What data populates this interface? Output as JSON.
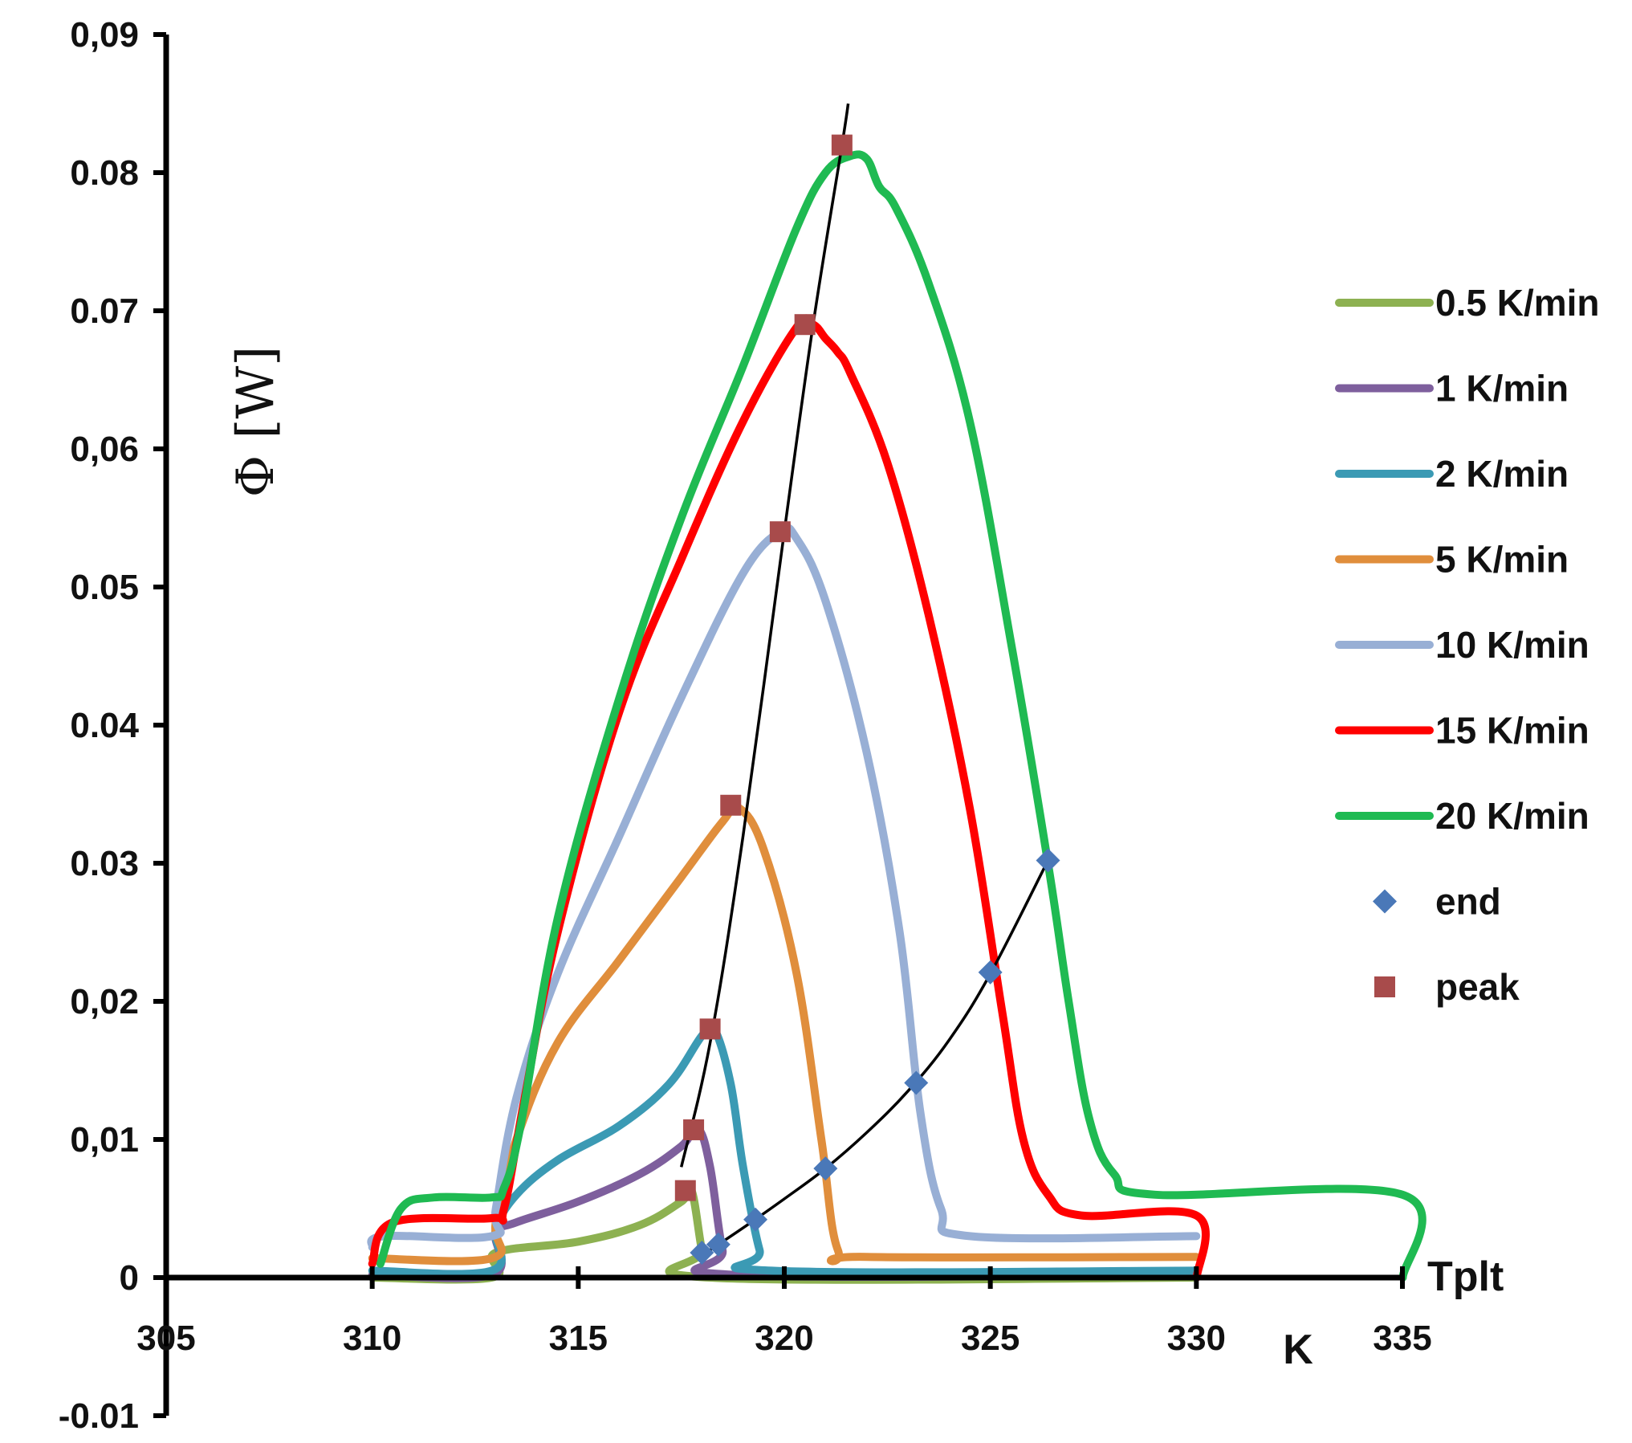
{
  "chart_data": {
    "type": "line",
    "title": "",
    "xlabel": "K",
    "x_axis_end_label": "Tplt",
    "ylabel": "Φ [W]",
    "xlim": [
      305,
      335
    ],
    "ylim": [
      -0.01,
      0.09
    ],
    "x_ticks": [
      {
        "value": 305,
        "label": "305"
      },
      {
        "value": 310,
        "label": "310"
      },
      {
        "value": 315,
        "label": "315"
      },
      {
        "value": 320,
        "label": "320"
      },
      {
        "value": 325,
        "label": "325"
      },
      {
        "value": 330,
        "label": "330"
      },
      {
        "value": 335,
        "label": "335"
      }
    ],
    "y_ticks": [
      {
        "value": 0.09,
        "label": "0,09"
      },
      {
        "value": 0.08,
        "label": "0.08"
      },
      {
        "value": 0.07,
        "label": "0.07"
      },
      {
        "value": 0.06,
        "label": "0,06"
      },
      {
        "value": 0.05,
        "label": "0.05"
      },
      {
        "value": 0.04,
        "label": "0.04"
      },
      {
        "value": 0.03,
        "label": "0.03"
      },
      {
        "value": 0.02,
        "label": "0,02"
      },
      {
        "value": 0.01,
        "label": "0,01"
      },
      {
        "value": 0,
        "label": "0"
      },
      {
        "value": -0.01,
        "label": "-0.01"
      }
    ],
    "series": [
      {
        "name": "0.5 K/min",
        "color": "#8db151",
        "x": [
          310,
          312.9,
          313.0,
          315,
          316.5,
          317.5,
          317.75,
          318.0,
          318.2,
          330
        ],
        "y": [
          0,
          0,
          0.0018,
          0.0026,
          0.0038,
          0.0055,
          0.0063,
          0.002,
          0.0,
          0.0
        ]
      },
      {
        "name": "1 K/min",
        "color": "#7e5f9d",
        "x": [
          310,
          312.9,
          313.0,
          313.5,
          315,
          316.5,
          317.5,
          317.9,
          318.2,
          318.5,
          318.8,
          330
        ],
        "y": [
          0.0002,
          0.0002,
          0.0032,
          0.004,
          0.0055,
          0.0075,
          0.0095,
          0.0108,
          0.008,
          0.002,
          0.0002,
          0.0002
        ]
      },
      {
        "name": "2 K/min",
        "color": "#3b9ab4",
        "x": [
          310,
          312.9,
          313.0,
          313.5,
          314.5,
          316,
          317.2,
          318.0,
          318.3,
          318.7,
          319.0,
          319.4,
          319.7,
          330
        ],
        "y": [
          0.0005,
          0.0005,
          0.0035,
          0.006,
          0.0085,
          0.011,
          0.014,
          0.0175,
          0.018,
          0.014,
          0.008,
          0.002,
          0.0005,
          0.0005
        ]
      },
      {
        "name": "5 K/min",
        "color": "#e08e3c",
        "x": [
          310,
          312.9,
          313.0,
          313.5,
          314.5,
          316,
          317.5,
          318.5,
          318.9,
          319.5,
          320.3,
          320.9,
          321.3,
          322,
          330
        ],
        "y": [
          0.0014,
          0.0014,
          0.004,
          0.01,
          0.017,
          0.023,
          0.029,
          0.033,
          0.034,
          0.031,
          0.022,
          0.01,
          0.002,
          0.0015,
          0.0015
        ]
      },
      {
        "name": "10 K/min",
        "color": "#98afd5",
        "x": [
          310,
          310.3,
          312.9,
          313.0,
          313.5,
          314.5,
          316,
          317.5,
          319.0,
          319.9,
          320.3,
          321.0,
          322.0,
          322.8,
          323.3,
          323.8,
          324.5,
          330
        ],
        "y": [
          0.0022,
          0.003,
          0.003,
          0.005,
          0.013,
          0.022,
          0.032,
          0.042,
          0.051,
          0.054,
          0.0535,
          0.049,
          0.038,
          0.025,
          0.012,
          0.005,
          0.003,
          0.003
        ]
      },
      {
        "name": "15 K/min",
        "color": "#ff0000",
        "x": [
          310,
          310.5,
          312.9,
          313.2,
          313.7,
          314.5,
          316,
          317.5,
          319.0,
          320.3,
          320.7,
          321.0,
          321.3,
          321.6,
          322.5,
          323.5,
          324.5,
          325.3,
          325.8,
          326.4,
          327.2,
          330,
          330.01
        ],
        "y": [
          0.001,
          0.004,
          0.0043,
          0.005,
          0.013,
          0.025,
          0.041,
          0.052,
          0.062,
          0.0688,
          0.069,
          0.068,
          0.067,
          0.0655,
          0.059,
          0.048,
          0.034,
          0.019,
          0.01,
          0.006,
          0.0045,
          0.0045,
          0
        ]
      },
      {
        "name": "20 K/min",
        "color": "#1fba52",
        "x": [
          310.2,
          310.7,
          311.5,
          312.9,
          313.2,
          313.6,
          314.5,
          316,
          317.5,
          319.0,
          320.3,
          321.0,
          321.6,
          322.0,
          322.3,
          322.7,
          323.5,
          324.5,
          325.5,
          326.4,
          326.9,
          327.4,
          328.0,
          329.0,
          335,
          335.01
        ],
        "y": [
          0.001,
          0.005,
          0.0058,
          0.0058,
          0.0065,
          0.011,
          0.026,
          0.042,
          0.055,
          0.066,
          0.076,
          0.08,
          0.0812,
          0.081,
          0.079,
          0.0775,
          0.072,
          0.062,
          0.046,
          0.03,
          0.02,
          0.0115,
          0.0075,
          0.006,
          0.006,
          0
        ]
      },
      {
        "name": "end",
        "color": "#4a78b8",
        "marker": "diamond",
        "x": [
          318.0,
          318.4,
          319.3,
          321.0,
          323.2,
          325.0,
          326.4
        ],
        "y": [
          0.0018,
          0.0024,
          0.0042,
          0.0079,
          0.0141,
          0.0221,
          0.0302
        ]
      },
      {
        "name": "peak",
        "color": "#a84b4b",
        "marker": "square",
        "x": [
          317.6,
          317.8,
          318.2,
          318.7,
          319.9,
          320.5,
          321.4
        ],
        "y": [
          0.0063,
          0.0107,
          0.018,
          0.0342,
          0.054,
          0.069,
          0.082
        ]
      }
    ],
    "trendlines": [
      {
        "name": "peak-trend",
        "color": "#000000",
        "x": [
          317.5,
          318.2,
          319.0,
          320.0,
          320.7,
          321.4,
          321.55
        ],
        "y": [
          0.008,
          0.017,
          0.032,
          0.054,
          0.069,
          0.082,
          0.085
        ]
      },
      {
        "name": "end-trend",
        "color": "#000000",
        "x": [
          318.0,
          319.0,
          320.0,
          321.0,
          322.0,
          323.0,
          324.0,
          325.0,
          326.4
        ],
        "y": [
          0.0016,
          0.0036,
          0.0057,
          0.0079,
          0.0105,
          0.0135,
          0.0172,
          0.022,
          0.0302
        ]
      }
    ],
    "legend": {
      "position": "right",
      "entries": [
        "0.5 K/min",
        "1 K/min",
        "2 K/min",
        "5 K/min",
        "10 K/min",
        "15 K/min",
        "20 K/min",
        "end",
        "peak"
      ]
    },
    "grid": false
  }
}
